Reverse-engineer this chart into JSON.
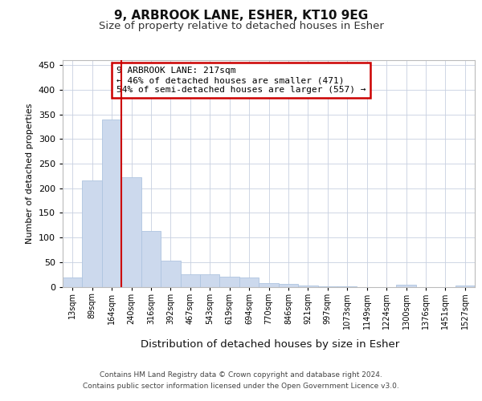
{
  "title1": "9, ARBROOK LANE, ESHER, KT10 9EG",
  "title2": "Size of property relative to detached houses in Esher",
  "xlabel": "Distribution of detached houses by size in Esher",
  "ylabel": "Number of detached properties",
  "categories": [
    "13sqm",
    "89sqm",
    "164sqm",
    "240sqm",
    "316sqm",
    "392sqm",
    "467sqm",
    "543sqm",
    "619sqm",
    "694sqm",
    "770sqm",
    "846sqm",
    "921sqm",
    "997sqm",
    "1073sqm",
    "1149sqm",
    "1224sqm",
    "1300sqm",
    "1376sqm",
    "1451sqm",
    "1527sqm"
  ],
  "values": [
    18,
    215,
    340,
    222,
    113,
    53,
    26,
    25,
    20,
    18,
    8,
    5,
    2,
    1,
    1,
    0,
    0,
    4,
    0,
    0,
    3
  ],
  "bar_color": "#ccd9ed",
  "bar_edge_color": "#afc4e0",
  "vline_color": "#cc0000",
  "vline_x": 2.5,
  "annotation_text": "9 ARBROOK LANE: 217sqm\n← 46% of detached houses are smaller (471)\n54% of semi-detached houses are larger (557) →",
  "annotation_box_color": "#ffffff",
  "annotation_box_edge": "#cc0000",
  "footer1": "Contains HM Land Registry data © Crown copyright and database right 2024.",
  "footer2": "Contains public sector information licensed under the Open Government Licence v3.0.",
  "background_color": "#ffffff",
  "plot_bg_color": "#ffffff",
  "grid_color": "#c8d0e0",
  "ylim": [
    0,
    460
  ],
  "yticks": [
    0,
    50,
    100,
    150,
    200,
    250,
    300,
    350,
    400,
    450
  ]
}
